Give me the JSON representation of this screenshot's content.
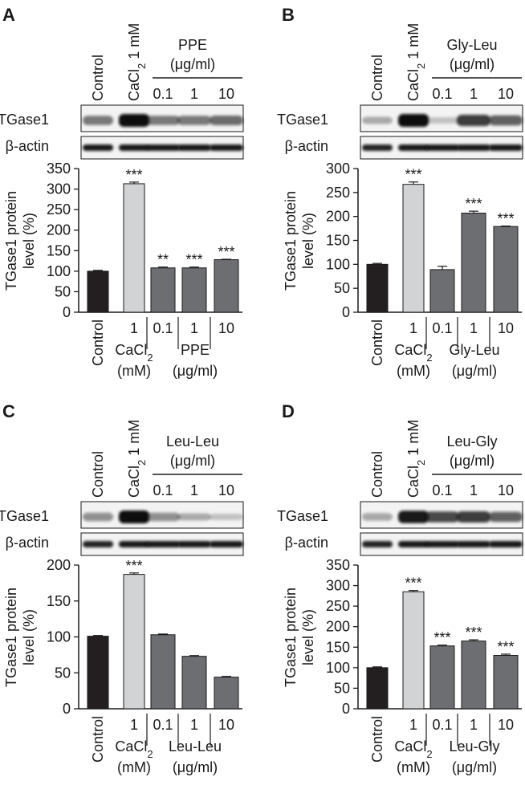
{
  "blot_labels": {
    "target": "TGase1",
    "loading": "β-actin"
  },
  "chart_data": [
    {
      "panel": "A",
      "type": "bar",
      "header": {
        "control": "Control",
        "cacl2": "CaCl2 1 mM",
        "treatment": "PPE",
        "unit": "(μg/ml)",
        "doses": [
          "0.1",
          "1",
          "10"
        ]
      },
      "ylabel": [
        "TGase1 protein",
        "level (%)"
      ],
      "ylim": [
        0,
        350
      ],
      "yticks": [
        0,
        50,
        100,
        150,
        200,
        250,
        300,
        350
      ],
      "categories": [
        "Control",
        "1",
        "0.1",
        "1",
        "10"
      ],
      "values": [
        100,
        313,
        108,
        108,
        128
      ],
      "errors": [
        2,
        4,
        2,
        2,
        1
      ],
      "significance": [
        "",
        "***",
        "**",
        "***",
        "***"
      ],
      "bar_colors": [
        "#231f20",
        "#d1d3d4",
        "#6d6e71",
        "#6d6e71",
        "#6d6e71"
      ],
      "xgroups": [
        {
          "line1": "CaCl2",
          "line2": "(mM)"
        },
        {
          "line1": "PPE",
          "line2": "(μg/ml)"
        }
      ],
      "blot_tgase": [
        0.55,
        1.0,
        0.55,
        0.55,
        0.6
      ],
      "blot_actin": [
        0.95,
        0.95,
        0.95,
        0.95,
        0.95
      ]
    },
    {
      "panel": "B",
      "type": "bar",
      "header": {
        "control": "Control",
        "cacl2": "CaCl2 1 mM",
        "treatment": "Gly-Leu",
        "unit": "(μg/ml)",
        "doses": [
          "0.1",
          "1",
          "10"
        ]
      },
      "ylabel": [
        "TGase1 protein",
        "level (%)"
      ],
      "ylim": [
        0,
        300
      ],
      "yticks": [
        0,
        50,
        100,
        150,
        200,
        250,
        300
      ],
      "categories": [
        "Control",
        "1",
        "0.1",
        "1",
        "10"
      ],
      "values": [
        100,
        267,
        89,
        207,
        179
      ],
      "errors": [
        2,
        5,
        7,
        4,
        1
      ],
      "significance": [
        "",
        "***",
        "",
        "***",
        "***"
      ],
      "bar_colors": [
        "#231f20",
        "#d1d3d4",
        "#6d6e71",
        "#6d6e71",
        "#6d6e71"
      ],
      "xgroups": [
        {
          "line1": "CaCl2",
          "line2": "(mM)"
        },
        {
          "line1": "Gly-Leu",
          "line2": "(μg/ml)"
        }
      ],
      "blot_tgase": [
        0.3,
        1.0,
        0.2,
        0.8,
        0.65
      ],
      "blot_actin": [
        0.9,
        0.95,
        0.95,
        0.95,
        0.95
      ]
    },
    {
      "panel": "C",
      "type": "bar",
      "header": {
        "control": "Control",
        "cacl2": "CaCl2 1 mM",
        "treatment": "Leu-Leu",
        "unit": "(μg/ml)",
        "doses": [
          "0.1",
          "1",
          "10"
        ]
      },
      "ylabel": [
        "TGase1 protein",
        "level (%)"
      ],
      "ylim": [
        0,
        200
      ],
      "yticks": [
        0,
        50,
        100,
        150,
        200
      ],
      "categories": [
        "Control",
        "1",
        "0.1",
        "1",
        "10"
      ],
      "values": [
        101,
        187,
        103,
        73,
        44
      ],
      "errors": [
        1,
        2,
        1,
        1,
        1
      ],
      "significance": [
        "",
        "***",
        "",
        "",
        ""
      ],
      "bar_colors": [
        "#231f20",
        "#d1d3d4",
        "#6d6e71",
        "#6d6e71",
        "#6d6e71"
      ],
      "xgroups": [
        {
          "line1": "CaCl2",
          "line2": "(mM)"
        },
        {
          "line1": "Leu-Leu",
          "line2": "(μg/ml)"
        }
      ],
      "blot_tgase": [
        0.45,
        1.0,
        0.45,
        0.3,
        0.2
      ],
      "blot_actin": [
        0.9,
        0.95,
        0.95,
        0.95,
        0.95
      ]
    },
    {
      "panel": "D",
      "type": "bar",
      "header": {
        "control": "Control",
        "cacl2": "CaCl2 1 mM",
        "treatment": "Leu-Gly",
        "unit": "(μg/ml)",
        "doses": [
          "0.1",
          "1",
          "10"
        ]
      },
      "ylabel": [
        "TGase1 protein",
        "level (%)"
      ],
      "ylim": [
        0,
        350
      ],
      "yticks": [
        0,
        50,
        100,
        150,
        200,
        250,
        300,
        350
      ],
      "categories": [
        "Control",
        "1",
        "0.1",
        "1",
        "10"
      ],
      "values": [
        100,
        285,
        153,
        165,
        130
      ],
      "errors": [
        2,
        3,
        2,
        3,
        3
      ],
      "significance": [
        "",
        "***",
        "***",
        "***",
        "***"
      ],
      "bar_colors": [
        "#231f20",
        "#d1d3d4",
        "#6d6e71",
        "#6d6e71",
        "#6d6e71"
      ],
      "xgroups": [
        {
          "line1": "CaCl2",
          "line2": "(mM)"
        },
        {
          "line1": "Leu-Gly",
          "line2": "(μg/ml)"
        }
      ],
      "blot_tgase": [
        0.35,
        0.95,
        0.75,
        0.8,
        0.65
      ],
      "blot_actin": [
        0.9,
        0.95,
        0.95,
        0.95,
        0.95
      ]
    }
  ]
}
